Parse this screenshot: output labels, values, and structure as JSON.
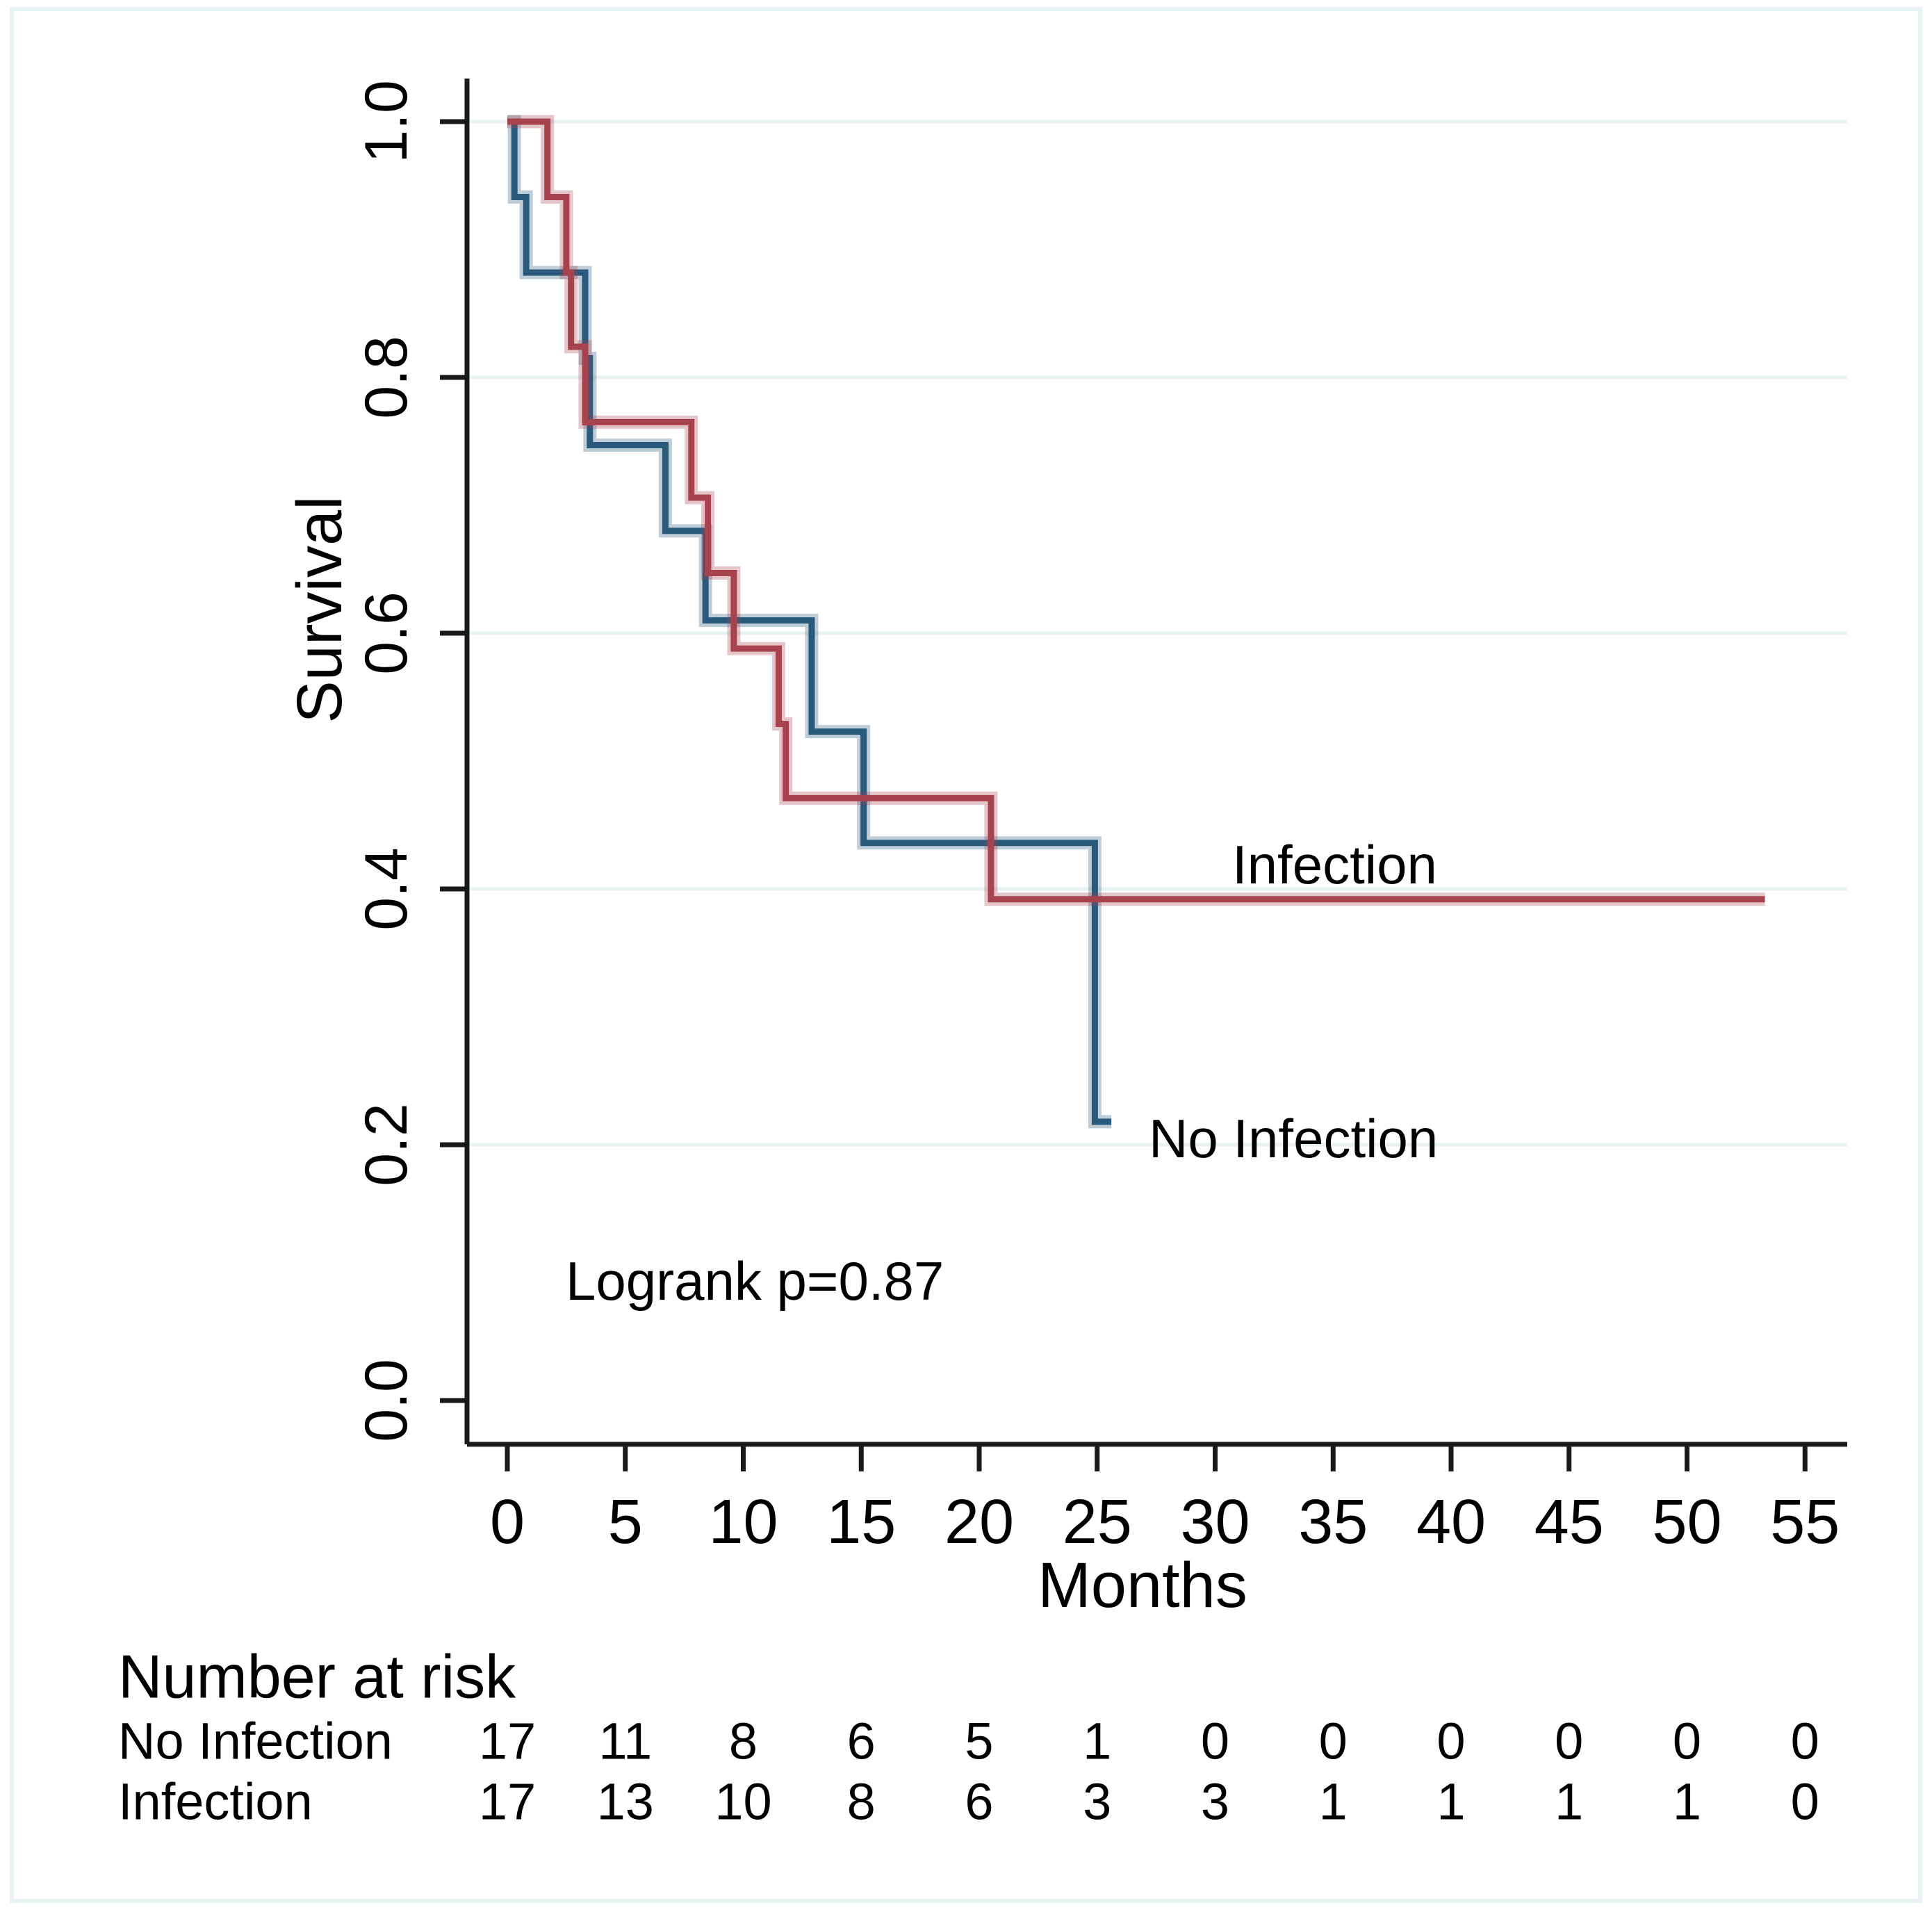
{
  "figure": {
    "background": "#ffffff",
    "border_color": "#e9f2f2",
    "axis_color": "#1a1a1a",
    "grid_color": "#e9f2f2",
    "text_color": "#000000"
  },
  "chart_data": {
    "type": "line",
    "subtype": "kaplan-meier-step",
    "title": "",
    "xlabel": "Months",
    "ylabel": "Survival",
    "xlim": [
      0,
      55
    ],
    "ylim": [
      0.0,
      1.0
    ],
    "x_ticks": [
      0,
      5,
      10,
      15,
      20,
      25,
      30,
      35,
      40,
      45,
      50,
      55
    ],
    "y_ticks": [
      "0.0",
      "0.2",
      "0.4",
      "0.6",
      "0.8",
      "1.0"
    ],
    "grid": "horizontal gridlines at 0.2, 0.4, 0.6, 0.8, 1.0",
    "legend_position": "curve labels drawn at line ends",
    "series": [
      {
        "name": "No Infection",
        "color": "#29597b",
        "points": [
          [
            0,
            1.0
          ],
          [
            0.3,
            0.941
          ],
          [
            0.8,
            0.882
          ],
          [
            3.3,
            0.815
          ],
          [
            3.5,
            0.747
          ],
          [
            6.7,
            0.68
          ],
          [
            8.4,
            0.61
          ],
          [
            12.9,
            0.523
          ],
          [
            15.1,
            0.436
          ],
          [
            24.9,
            0.218
          ]
        ],
        "end_month": 25.6
      },
      {
        "name": "Infection",
        "color": "#a7434f",
        "points": [
          [
            0,
            1.0
          ],
          [
            1.7,
            0.941
          ],
          [
            2.5,
            0.882
          ],
          [
            2.7,
            0.824
          ],
          [
            3.3,
            0.765
          ],
          [
            7.8,
            0.706
          ],
          [
            8.5,
            0.647
          ],
          [
            9.6,
            0.588
          ],
          [
            11.5,
            0.529
          ],
          [
            11.8,
            0.471
          ],
          [
            20.5,
            0.392
          ]
        ],
        "end_month": 53.3
      }
    ],
    "annotations": {
      "logrank": "Logrank p=0.87",
      "infection_label": "Infection",
      "no_infection_label": "No Infection"
    }
  },
  "risk_table": {
    "title": "Number at risk",
    "months": [
      0,
      5,
      10,
      15,
      20,
      25,
      30,
      35,
      40,
      45,
      50,
      55
    ],
    "rows": [
      {
        "label": "No Infection",
        "values": [
          17,
          11,
          8,
          6,
          5,
          1,
          0,
          0,
          0,
          0,
          0,
          0
        ]
      },
      {
        "label": "Infection",
        "values": [
          17,
          13,
          10,
          8,
          6,
          3,
          3,
          1,
          1,
          1,
          1,
          0
        ]
      }
    ]
  }
}
